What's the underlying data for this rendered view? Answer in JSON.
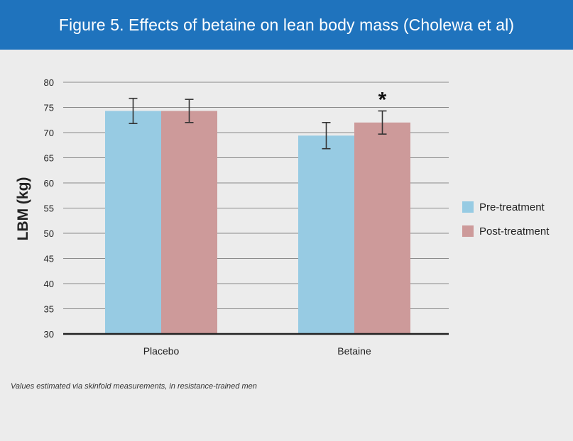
{
  "header": {
    "title": "Figure 5. Effects of betaine on lean body mass (Cholewa et al)"
  },
  "footnote": "Values estimated via skinfold measurements, in resistance-trained men",
  "colors": {
    "header_bg": "#1f73bd",
    "pre_treatment": "#97cbe3",
    "post_treatment": "#cd9a9a",
    "background": "#ececec",
    "gridline": "#8a8a8a",
    "axis": "#222222"
  },
  "chart_data": {
    "type": "bar",
    "ylabel": "LBM (kg)",
    "xlabel": "",
    "ylim": [
      30,
      80
    ],
    "yticks": [
      30,
      35,
      40,
      45,
      50,
      55,
      60,
      65,
      70,
      75,
      80
    ],
    "grid": true,
    "legend_position": "right",
    "categories": [
      "Placebo",
      "Betaine"
    ],
    "series": [
      {
        "name": "Pre-treatment",
        "color": "#97cbe3",
        "values": [
          74.3,
          69.4
        ],
        "error": [
          2.5,
          2.6
        ]
      },
      {
        "name": "Post-treatment",
        "color": "#cd9a9a",
        "values": [
          74.3,
          72.0
        ],
        "error": [
          2.3,
          2.3
        ]
      }
    ],
    "annotations": [
      {
        "text": "*",
        "category": "Betaine",
        "series": "Post-treatment"
      }
    ]
  }
}
